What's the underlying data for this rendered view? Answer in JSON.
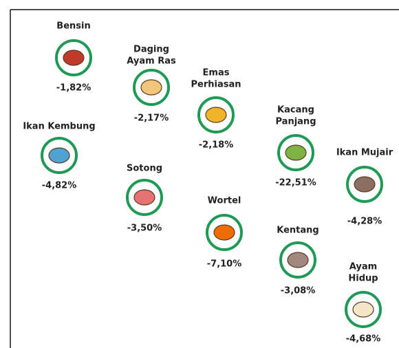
{
  "items": [
    {
      "name": [
        "Bensin"
      ],
      "value": "-1,82%"
    },
    {
      "name": [
        "Daging",
        "Ayam Ras"
      ],
      "value": "-2,17%"
    },
    {
      "name": [
        "Emas",
        "Perhiasan"
      ],
      "value": "-2,18%"
    },
    {
      "name": [
        "Kacang",
        "Panjang"
      ],
      "value": "-22,51%"
    },
    {
      "name": [
        "Ikan Mujair"
      ],
      "value": "-4,28%"
    },
    {
      "name": [
        "Ikan Kembung"
      ],
      "value": "-4,82%"
    },
    {
      "name": [
        "Sotong"
      ],
      "value": "-3,50%"
    },
    {
      "name": [
        "Wortel"
      ],
      "value": "-7,10%"
    },
    {
      "name": [
        "Kentang"
      ],
      "value": "-3,08%"
    },
    {
      "name": [
        "Ayam",
        "Hidup"
      ],
      "value": "-4,68%"
    }
  ]
}
